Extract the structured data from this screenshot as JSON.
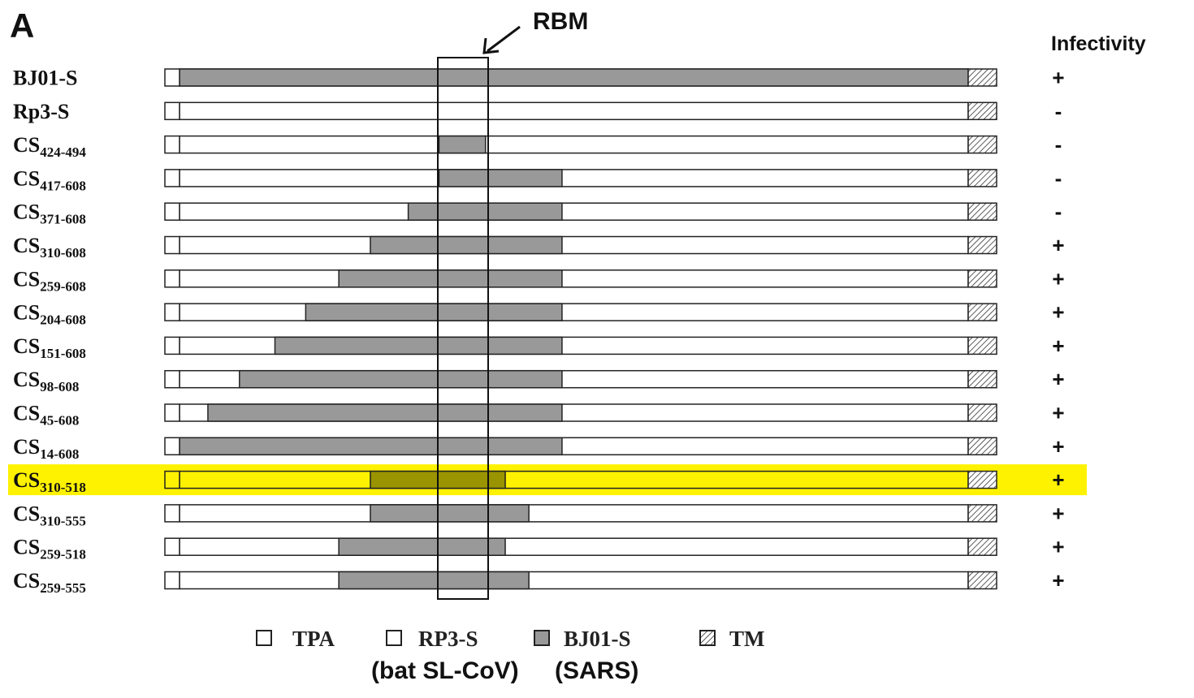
{
  "panel_letter": "A",
  "rbm_label": "RBM",
  "infectivity_header": "Infectivity",
  "colors": {
    "sars": "#999999",
    "bat": "#ffffff",
    "highlight": "#fff200",
    "highlight_sars": "#9a9400",
    "outline": "#222222"
  },
  "constructs": [
    {
      "base": "BJ01-S",
      "sub": "",
      "infectivity": "+",
      "sars_start": 0.0,
      "sars_end": 1.0
    },
    {
      "base": "Rp3-S",
      "sub": "",
      "infectivity": "-",
      "sars_start": null,
      "sars_end": null
    },
    {
      "base": "CS",
      "sub": "424-494",
      "infectivity": "-",
      "sars_start": 0.329,
      "sars_end": 0.388
    },
    {
      "base": "CS",
      "sub": "417-608",
      "infectivity": "-",
      "sars_start": 0.329,
      "sars_end": 0.485
    },
    {
      "base": "CS",
      "sub": "371-608",
      "infectivity": "-",
      "sars_start": 0.29,
      "sars_end": 0.485
    },
    {
      "base": "CS",
      "sub": "310-608",
      "infectivity": "+",
      "sars_start": 0.242,
      "sars_end": 0.485
    },
    {
      "base": "CS",
      "sub": "259-608",
      "infectivity": "+",
      "sars_start": 0.202,
      "sars_end": 0.485
    },
    {
      "base": "CS",
      "sub": "204-608",
      "infectivity": "+",
      "sars_start": 0.16,
      "sars_end": 0.485
    },
    {
      "base": "CS",
      "sub": "151-608",
      "infectivity": "+",
      "sars_start": 0.121,
      "sars_end": 0.485
    },
    {
      "base": "CS",
      "sub": "98-608",
      "infectivity": "+",
      "sars_start": 0.076,
      "sars_end": 0.485
    },
    {
      "base": "CS",
      "sub": "45-608",
      "infectivity": "+",
      "sars_start": 0.036,
      "sars_end": 0.485
    },
    {
      "base": "CS",
      "sub": "14-608",
      "infectivity": "+",
      "sars_start": 0.0,
      "sars_end": 0.485
    },
    {
      "base": "CS",
      "sub": "310-518",
      "infectivity": "+",
      "sars_start": 0.242,
      "sars_end": 0.413,
      "highlight": true
    },
    {
      "base": "CS",
      "sub": "310-555",
      "infectivity": "+",
      "sars_start": 0.242,
      "sars_end": 0.443
    },
    {
      "base": "CS",
      "sub": "259-518",
      "infectivity": "+",
      "sars_start": 0.202,
      "sars_end": 0.413
    },
    {
      "base": "CS",
      "sub": "259-555",
      "infectivity": "+",
      "sars_start": 0.202,
      "sars_end": 0.443
    }
  ],
  "legend": {
    "items": [
      {
        "label": "TPA",
        "swatch": "empty"
      },
      {
        "label": "RP3-S",
        "swatch": "empty"
      },
      {
        "label": "BJ01-S",
        "swatch": "gray"
      },
      {
        "label": "TM",
        "swatch": "hatched"
      }
    ],
    "sub_rp3": "(bat SL-CoV)",
    "sub_bj01": "(SARS)"
  }
}
